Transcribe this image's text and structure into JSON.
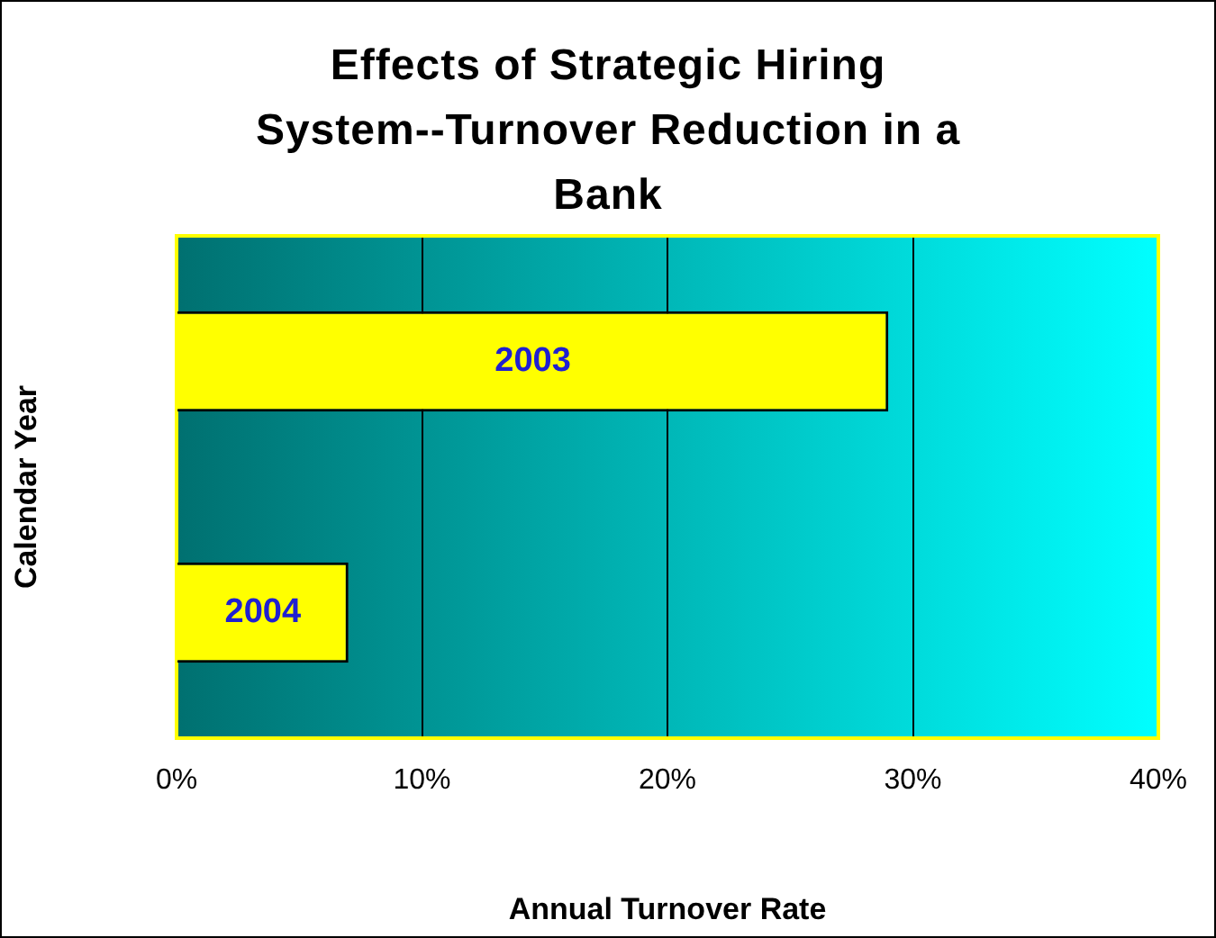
{
  "chart_data": {
    "type": "bar",
    "orientation": "horizontal",
    "title": "Effects of Strategic Hiring System--Turnover Reduction in a Bank",
    "xlabel": "Annual Turnover Rate",
    "ylabel": "Calendar Year",
    "categories": [
      "2003",
      "2004"
    ],
    "series": [
      {
        "color": "#ffff00",
        "values": [
          29,
          7
        ]
      }
    ],
    "xlim": [
      0,
      40
    ],
    "xticks": [
      {
        "value": 0,
        "label": "0%"
      },
      {
        "value": 10,
        "label": "10%"
      },
      {
        "value": 20,
        "label": "20%"
      },
      {
        "value": 30,
        "label": "30%"
      },
      {
        "value": 40,
        "label": "40%"
      }
    ],
    "grid": "x",
    "legend": false
  }
}
